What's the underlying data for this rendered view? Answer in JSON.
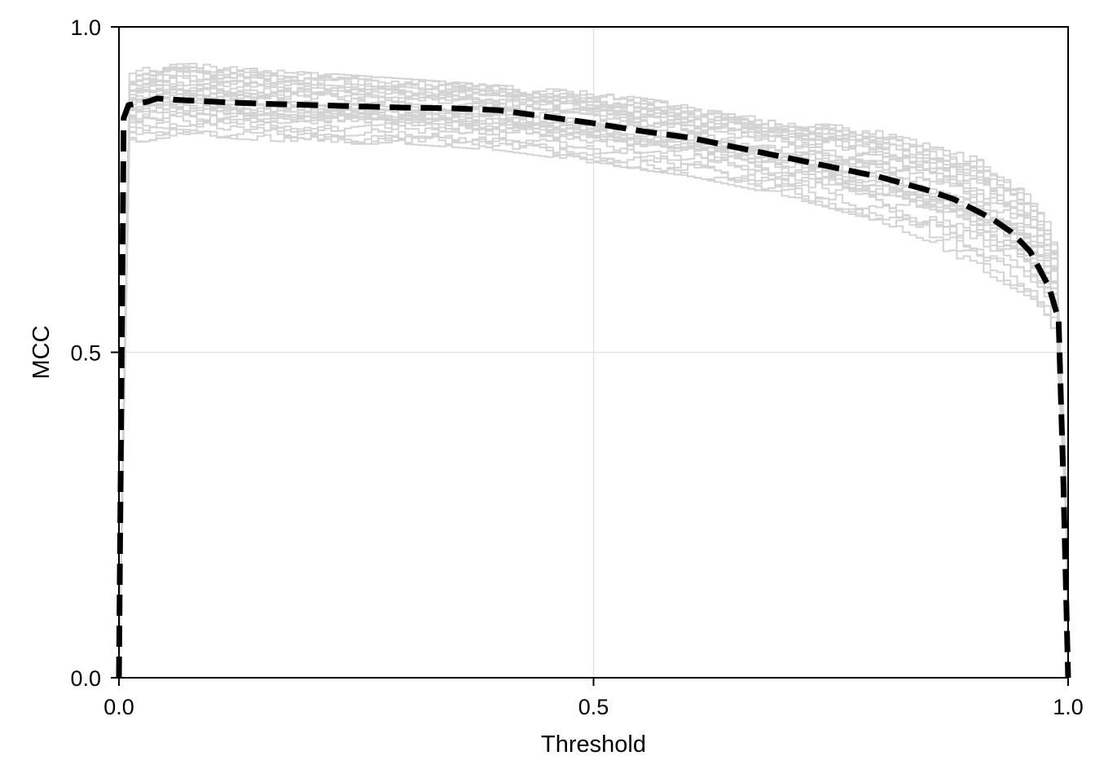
{
  "chart_data": {
    "type": "line",
    "title": "",
    "xlabel": "Threshold",
    "ylabel": "MCC",
    "xlim": [
      0.0,
      1.0
    ],
    "ylim": [
      0.0,
      1.0
    ],
    "xticks": [
      0.0,
      0.5,
      1.0
    ],
    "xtick_labels": [
      "0.0",
      "0.5",
      "1.0"
    ],
    "yticks": [
      0.0,
      0.5,
      1.0
    ],
    "ytick_labels": [
      "0.0",
      "0.5",
      "1.0"
    ],
    "grid": true,
    "legend": "none",
    "colors": {
      "replicates": "#d3d3d3",
      "mean": "#000000",
      "grid": "#e0e0e0",
      "axis": "#000000"
    },
    "replicate_count": 30,
    "replicate_envelope": {
      "x": [
        0.0,
        0.01,
        0.05,
        0.1,
        0.2,
        0.3,
        0.4,
        0.5,
        0.6,
        0.7,
        0.8,
        0.85,
        0.9,
        0.95,
        0.98,
        0.99,
        1.0
      ],
      "lower": [
        0.0,
        0.82,
        0.83,
        0.83,
        0.82,
        0.82,
        0.81,
        0.79,
        0.77,
        0.74,
        0.7,
        0.67,
        0.63,
        0.59,
        0.55,
        0.48,
        0.0
      ],
      "upper": [
        0.0,
        0.93,
        0.95,
        0.94,
        0.93,
        0.92,
        0.91,
        0.9,
        0.88,
        0.86,
        0.84,
        0.82,
        0.8,
        0.75,
        0.69,
        0.6,
        0.0
      ]
    },
    "series": [
      {
        "name": "",
        "style": "dashed",
        "x": [
          0.0,
          0.005,
          0.01,
          0.03,
          0.04,
          0.06,
          0.1,
          0.15,
          0.2,
          0.25,
          0.3,
          0.35,
          0.4,
          0.45,
          0.5,
          0.55,
          0.6,
          0.65,
          0.7,
          0.75,
          0.8,
          0.85,
          0.88,
          0.9,
          0.92,
          0.94,
          0.96,
          0.98,
          0.99,
          0.995,
          1.0
        ],
        "values": [
          0.0,
          0.86,
          0.88,
          0.885,
          0.89,
          0.888,
          0.885,
          0.882,
          0.88,
          0.878,
          0.876,
          0.875,
          0.872,
          0.862,
          0.852,
          0.84,
          0.83,
          0.815,
          0.8,
          0.785,
          0.77,
          0.75,
          0.735,
          0.72,
          0.705,
          0.685,
          0.655,
          0.6,
          0.55,
          0.3,
          0.0
        ]
      }
    ]
  }
}
